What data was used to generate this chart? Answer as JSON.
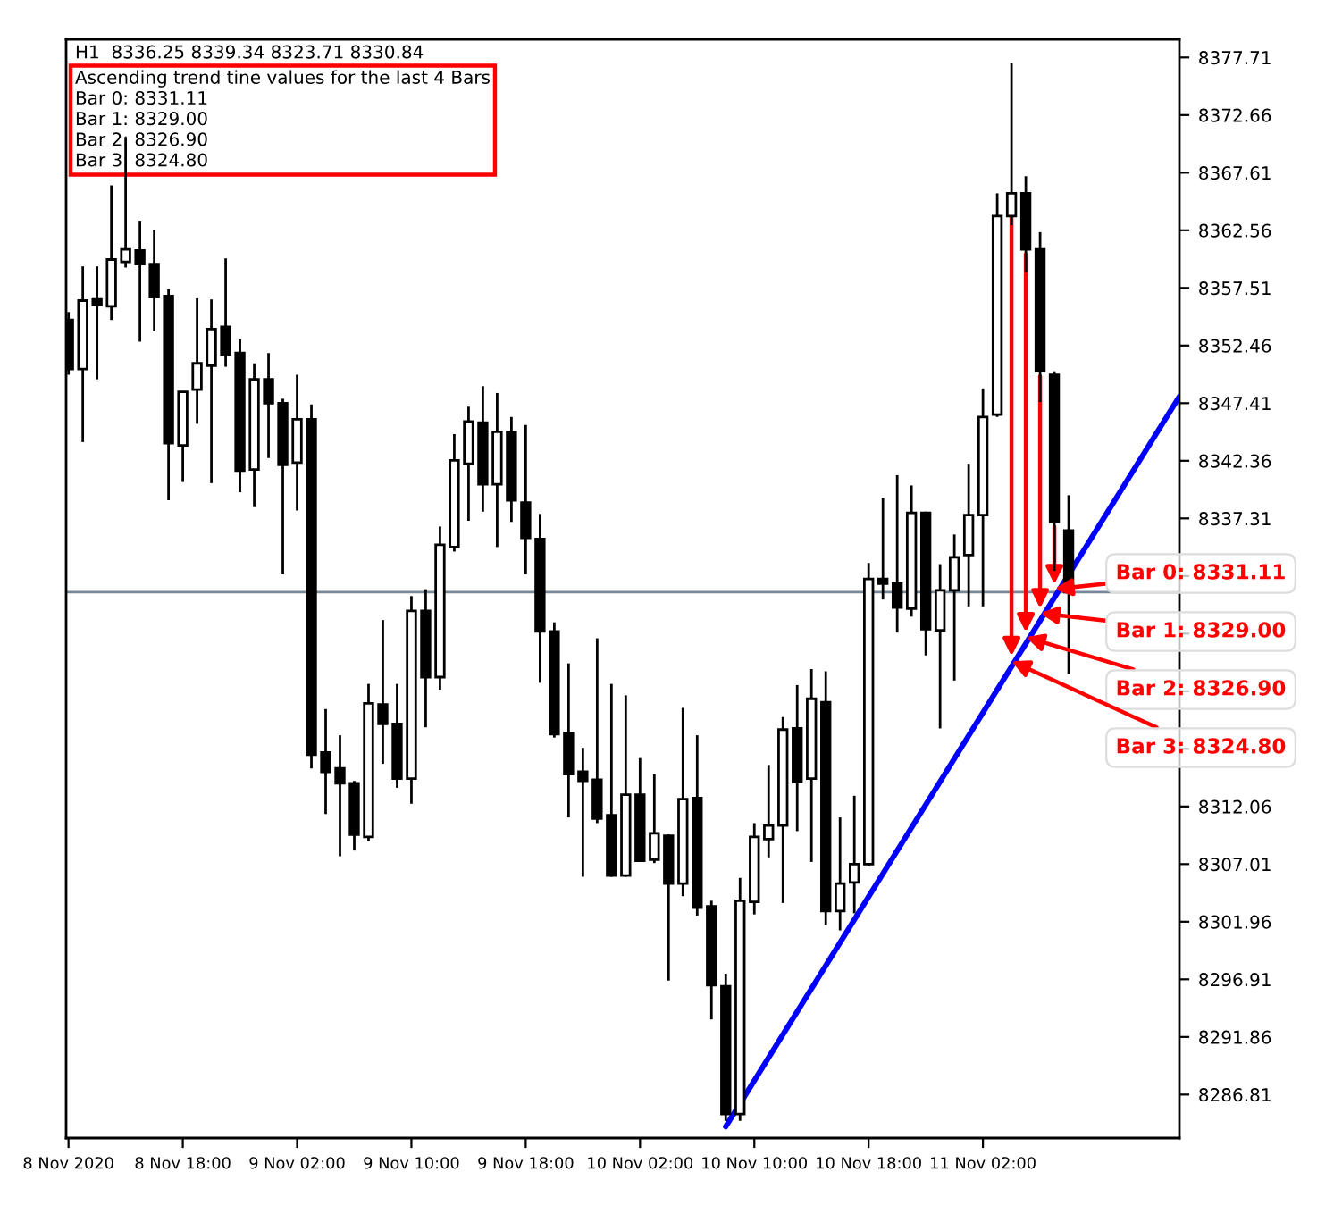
{
  "chart_data": {
    "type": "candlestick",
    "title": "H1  8336.25 8339.34 8323.71 8330.84",
    "xlim": [
      "2020-11-08T09:50",
      "2020-11-11T15:45"
    ],
    "xticks": [
      {
        "value": "2020-11-08T10:00",
        "label": "8 Nov 2020"
      },
      {
        "value": "2020-11-08T18:00",
        "label": "8 Nov 18:00"
      },
      {
        "value": "2020-11-09T02:00",
        "label": "9 Nov 02:00"
      },
      {
        "value": "2020-11-09T10:00",
        "label": "9 Nov 10:00"
      },
      {
        "value": "2020-11-09T18:00",
        "label": "9 Nov 18:00"
      },
      {
        "value": "2020-11-10T02:00",
        "label": "10 Nov 02:00"
      },
      {
        "value": "2020-11-10T10:00",
        "label": "10 Nov 10:00"
      },
      {
        "value": "2020-11-10T18:00",
        "label": "10 Nov 18:00"
      },
      {
        "value": "2020-11-11T02:00",
        "label": "11 Nov 02:00"
      }
    ],
    "ylim": [
      8283.0,
      8379.3
    ],
    "yticks": [
      8377.71,
      8372.66,
      8367.61,
      8362.56,
      8357.51,
      8352.46,
      8347.41,
      8342.36,
      8337.31,
      {
        "value": 8332.26,
        "label": null
      },
      {
        "value": 8327.21,
        "label": null
      },
      {
        "value": 8322.16,
        "label": null
      },
      {
        "value": 8317.11,
        "label": null
      },
      8312.06,
      8307.01,
      8301.96,
      8296.91,
      8291.86,
      8286.81
    ],
    "grid": false,
    "legend": false,
    "ref_lines": [
      {
        "axis": "y",
        "value": 8330.84,
        "color": "#778899"
      }
    ],
    "series": [
      {
        "color": "#000000",
        "x": [
          "2020-11-08T10:00",
          "2020-11-08T11:00",
          "2020-11-08T12:00",
          "2020-11-08T13:00",
          "2020-11-08T14:00",
          "2020-11-08T15:00",
          "2020-11-08T16:00",
          "2020-11-08T17:00",
          "2020-11-08T18:00",
          "2020-11-08T19:00",
          "2020-11-08T20:00",
          "2020-11-08T21:00",
          "2020-11-08T22:00",
          "2020-11-08T23:00",
          "2020-11-09T00:00",
          "2020-11-09T01:00",
          "2020-11-09T02:00",
          "2020-11-09T03:00",
          "2020-11-09T04:00",
          "2020-11-09T05:00",
          "2020-11-09T06:00",
          "2020-11-09T07:00",
          "2020-11-09T08:00",
          "2020-11-09T09:00",
          "2020-11-09T10:00",
          "2020-11-09T11:00",
          "2020-11-09T12:00",
          "2020-11-09T13:00",
          "2020-11-09T14:00",
          "2020-11-09T15:00",
          "2020-11-09T16:00",
          "2020-11-09T17:00",
          "2020-11-09T18:00",
          "2020-11-09T19:00",
          "2020-11-09T20:00",
          "2020-11-09T21:00",
          "2020-11-09T22:00",
          "2020-11-09T23:00",
          "2020-11-10T00:00",
          "2020-11-10T01:00",
          "2020-11-10T02:00",
          "2020-11-10T03:00",
          "2020-11-10T04:00",
          "2020-11-10T05:00",
          "2020-11-10T06:00",
          "2020-11-10T07:00",
          "2020-11-10T08:00",
          "2020-11-10T09:00",
          "2020-11-10T10:00",
          "2020-11-10T11:00",
          "2020-11-10T12:00",
          "2020-11-10T13:00",
          "2020-11-10T14:00",
          "2020-11-10T15:00",
          "2020-11-10T16:00",
          "2020-11-10T17:00",
          "2020-11-10T18:00",
          "2020-11-10T19:00",
          "2020-11-10T20:00",
          "2020-11-10T21:00",
          "2020-11-10T22:00",
          "2020-11-10T23:00",
          "2020-11-11T00:00",
          "2020-11-11T01:00",
          "2020-11-11T02:00",
          "2020-11-11T03:00",
          "2020-11-11T04:00",
          "2020-11-11T05:00",
          "2020-11-11T06:00",
          "2020-11-11T07:00",
          "2020-11-11T08:00"
        ],
        "ohlc": [
          [
            8354.7,
            8355.4,
            8349.9,
            8350.4
          ],
          [
            8350.4,
            8359.4,
            8344.0,
            8356.4
          ],
          [
            8356.5,
            8359.4,
            8349.5,
            8356.0
          ],
          [
            8355.9,
            8366.5,
            8354.7,
            8360.0
          ],
          [
            8359.8,
            8370.7,
            8359.3,
            8360.9
          ],
          [
            8360.8,
            8363.4,
            8352.8,
            8359.6
          ],
          [
            8359.6,
            8362.6,
            8353.7,
            8356.7
          ],
          [
            8356.8,
            8357.4,
            8338.9,
            8343.9
          ],
          [
            8343.7,
            8348.4,
            8340.5,
            8348.4
          ],
          [
            8348.6,
            8356.6,
            8345.6,
            8350.9
          ],
          [
            8350.7,
            8356.5,
            8340.4,
            8353.9
          ],
          [
            8354.1,
            8360.1,
            8350.6,
            8351.7
          ],
          [
            8351.8,
            8353.0,
            8339.6,
            8341.5
          ],
          [
            8341.6,
            8350.9,
            8338.3,
            8349.5
          ],
          [
            8349.5,
            8351.8,
            8342.6,
            8347.4
          ],
          [
            8347.4,
            8347.8,
            8332.4,
            8342.0
          ],
          [
            8342.2,
            8349.9,
            8338.0,
            8346.0
          ],
          [
            8346.0,
            8347.3,
            8315.4,
            8316.6
          ],
          [
            8316.8,
            8320.6,
            8311.4,
            8315.1
          ],
          [
            8315.4,
            8318.3,
            8307.7,
            8314.1
          ],
          [
            8314.1,
            8314.3,
            8308.2,
            8309.6
          ],
          [
            8309.4,
            8322.8,
            8309.0,
            8321.1
          ],
          [
            8321.0,
            8328.4,
            8315.8,
            8319.3
          ],
          [
            8319.3,
            8322.8,
            8313.7,
            8314.5
          ],
          [
            8314.5,
            8330.5,
            8312.3,
            8329.2
          ],
          [
            8329.2,
            8331.1,
            8319.0,
            8323.4
          ],
          [
            8323.4,
            8336.6,
            8322.3,
            8335.0
          ],
          [
            8334.8,
            8344.7,
            8334.4,
            8342.4
          ],
          [
            8342.1,
            8347.1,
            8337.1,
            8345.8
          ],
          [
            8345.7,
            8348.9,
            8337.9,
            8340.3
          ],
          [
            8340.3,
            8348.3,
            8334.8,
            8344.9
          ],
          [
            8344.9,
            8346.2,
            8337.0,
            8338.9
          ],
          [
            8338.7,
            8345.5,
            8332.4,
            8335.6
          ],
          [
            8335.5,
            8337.7,
            8322.9,
            8327.4
          ],
          [
            8327.4,
            8328.2,
            8318.1,
            8318.4
          ],
          [
            8318.5,
            8324.6,
            8311.1,
            8314.9
          ],
          [
            8315.1,
            8317.2,
            8305.9,
            8314.3
          ],
          [
            8314.4,
            8326.8,
            8310.6,
            8311.0
          ],
          [
            8311.3,
            8322.8,
            8305.9,
            8306.0
          ],
          [
            8306.0,
            8321.8,
            8305.9,
            8313.1
          ],
          [
            8313.1,
            8316.3,
            8307.2,
            8307.3
          ],
          [
            8307.4,
            8314.9,
            8307.1,
            8309.7
          ],
          [
            8309.5,
            8309.6,
            8296.8,
            8305.3
          ],
          [
            8305.3,
            8320.7,
            8304.2,
            8312.7
          ],
          [
            8312.8,
            8318.3,
            8302.5,
            8303.2
          ],
          [
            8303.3,
            8303.8,
            8293.4,
            8296.4
          ],
          [
            8296.3,
            8297.4,
            8284.5,
            8285.1
          ],
          [
            8285.1,
            8305.8,
            8284.5,
            8303.8
          ],
          [
            8303.7,
            8310.6,
            8302.6,
            8309.4
          ],
          [
            8309.2,
            8315.7,
            8307.6,
            8310.4
          ],
          [
            8310.4,
            8319.9,
            8303.6,
            8318.8
          ],
          [
            8318.9,
            8322.7,
            8309.9,
            8314.2
          ],
          [
            8314.5,
            8324.1,
            8307.2,
            8321.5
          ],
          [
            8321.2,
            8323.9,
            8301.7,
            8302.9
          ],
          [
            8302.9,
            8311.1,
            8301.2,
            8305.3
          ],
          [
            8305.4,
            8313.0,
            8302.7,
            8307.0
          ],
          [
            8307.0,
            8333.4,
            8306.8,
            8332.0
          ],
          [
            8332.0,
            8339.1,
            8330.2,
            8331.6
          ],
          [
            8331.6,
            8341.1,
            8327.3,
            8329.5
          ],
          [
            8329.4,
            8340.2,
            8328.7,
            8337.8
          ],
          [
            8337.8,
            8337.9,
            8325.3,
            8327.6
          ],
          [
            8327.5,
            8333.3,
            8318.9,
            8331.0
          ],
          [
            8331.0,
            8335.9,
            8323.1,
            8333.9
          ],
          [
            8334.1,
            8342.1,
            8329.6,
            8337.6
          ],
          [
            8337.6,
            8348.7,
            8329.6,
            8346.2
          ],
          [
            8346.4,
            8365.8,
            8346.2,
            8363.8
          ],
          [
            8363.8,
            8377.2,
            8363.0,
            8365.8
          ],
          [
            8365.8,
            8367.3,
            8358.9,
            8360.9
          ],
          [
            8360.9,
            8362.4,
            8347.5,
            8350.2
          ],
          [
            8349.9,
            8350.2,
            8332.7,
            8337.0
          ],
          [
            8336.25,
            8339.34,
            8323.71,
            8330.84
          ]
        ]
      },
      {
        "type": "line",
        "color": "#0000ff",
        "x": [
          "2020-11-10T08:00",
          "2020-11-11T15:45"
        ],
        "values": [
          8284.0,
          8348.0
        ]
      }
    ],
    "annotations": [
      "Ascending trend tine values for the last 4 Bars",
      "Bar 0: 8331.11",
      "Bar 1: 8329.00",
      "Bar 2: 8326.90",
      "Bar 3: 8324.80",
      {
        "text": "Bar 0: 8331.11",
        "x": "2020-11-11T07:00",
        "y": 8331.11
      },
      {
        "text": "Bar 1: 8329.00",
        "x": "2020-11-11T06:00",
        "y": 8329.0
      },
      {
        "text": "Bar 2: 8326.90",
        "x": "2020-11-11T05:00",
        "y": 8326.9
      },
      {
        "text": "Bar 3: 8324.80",
        "x": "2020-11-11T04:00",
        "y": 8324.8
      }
    ]
  }
}
